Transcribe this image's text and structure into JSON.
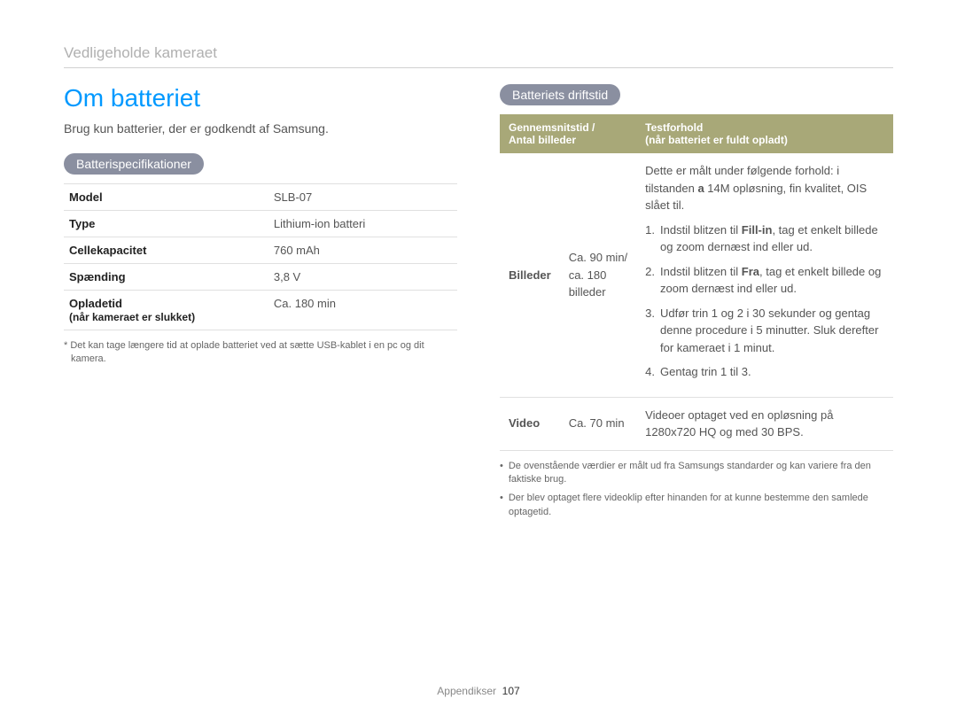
{
  "breadcrumb": "Vedligeholde kameraet",
  "heading": "Om batteriet",
  "intro": "Brug kun batterier, der er godkendt af Samsung.",
  "left": {
    "pill": "Batterispecifikationer",
    "rows": [
      {
        "label": "Model",
        "sublabel": "",
        "value": "SLB-07"
      },
      {
        "label": "Type",
        "sublabel": "",
        "value": "Lithium-ion batteri"
      },
      {
        "label": "Cellekapacitet",
        "sublabel": "",
        "value": "760 mAh"
      },
      {
        "label": "Spænding",
        "sublabel": "",
        "value": "3,8 V"
      },
      {
        "label": "Opladetid",
        "sublabel": "(når kameraet er slukket)",
        "value": "Ca. 180 min"
      }
    ],
    "footnote": "* Det kan tage længere tid at oplade batteriet ved at sætte USB-kablet i en pc og dit kamera."
  },
  "right": {
    "pill": "Batteriets driftstid",
    "header_col1_line1": "Gennemsnitstid /",
    "header_col1_line2": "Antal billeder",
    "header_col2_line1": "Testforhold",
    "header_col2_line2": "(når batteriet er fuldt opladt)",
    "row_photos": {
      "label": "Billeder",
      "avg_line1": "Ca. 90 min/",
      "avg_line2": "ca. 180",
      "avg_line3": "billeder",
      "cond_intro_a": "Dette er målt under følgende forhold: i tilstanden ",
      "cond_intro_bold": "a",
      "cond_intro_b": "   14M opløsning, fin kvalitet, OIS slået til.",
      "items": [
        {
          "n": "1.",
          "t_a": "Indstil blitzen til ",
          "t_bold": "Fill-in",
          "t_b": ", tag et enkelt billede og zoom dernæst ind eller ud."
        },
        {
          "n": "2.",
          "t_a": "Indstil blitzen til ",
          "t_bold": "Fra",
          "t_b": ", tag et enkelt billede og zoom dernæst ind eller ud."
        },
        {
          "n": "3.",
          "t_a": "Udfør trin 1 og 2 i 30 sekunder og gentag denne procedure i 5 minutter. Sluk derefter for kameraet i 1 minut.",
          "t_bold": "",
          "t_b": ""
        },
        {
          "n": "4.",
          "t_a": "Gentag trin 1 til 3.",
          "t_bold": "",
          "t_b": ""
        }
      ]
    },
    "row_video": {
      "label": "Video",
      "avg": "Ca. 70 min",
      "cond": "Videoer optaget ved en opløsning på 1280x720 HQ og med 30 BPS."
    },
    "bullets": [
      "De ovenstående værdier er målt ud fra Samsungs standarder og kan variere fra den faktiske brug.",
      "Der blev optaget flere videoklip efter hinanden for at kunne bestemme den samlede optagetid."
    ]
  },
  "footer": {
    "label": "Appendikser",
    "page": "107"
  },
  "colors": {
    "heading": "#0099ff",
    "pill_bg": "#8a8fa0",
    "table_header_bg": "#a8a878"
  }
}
